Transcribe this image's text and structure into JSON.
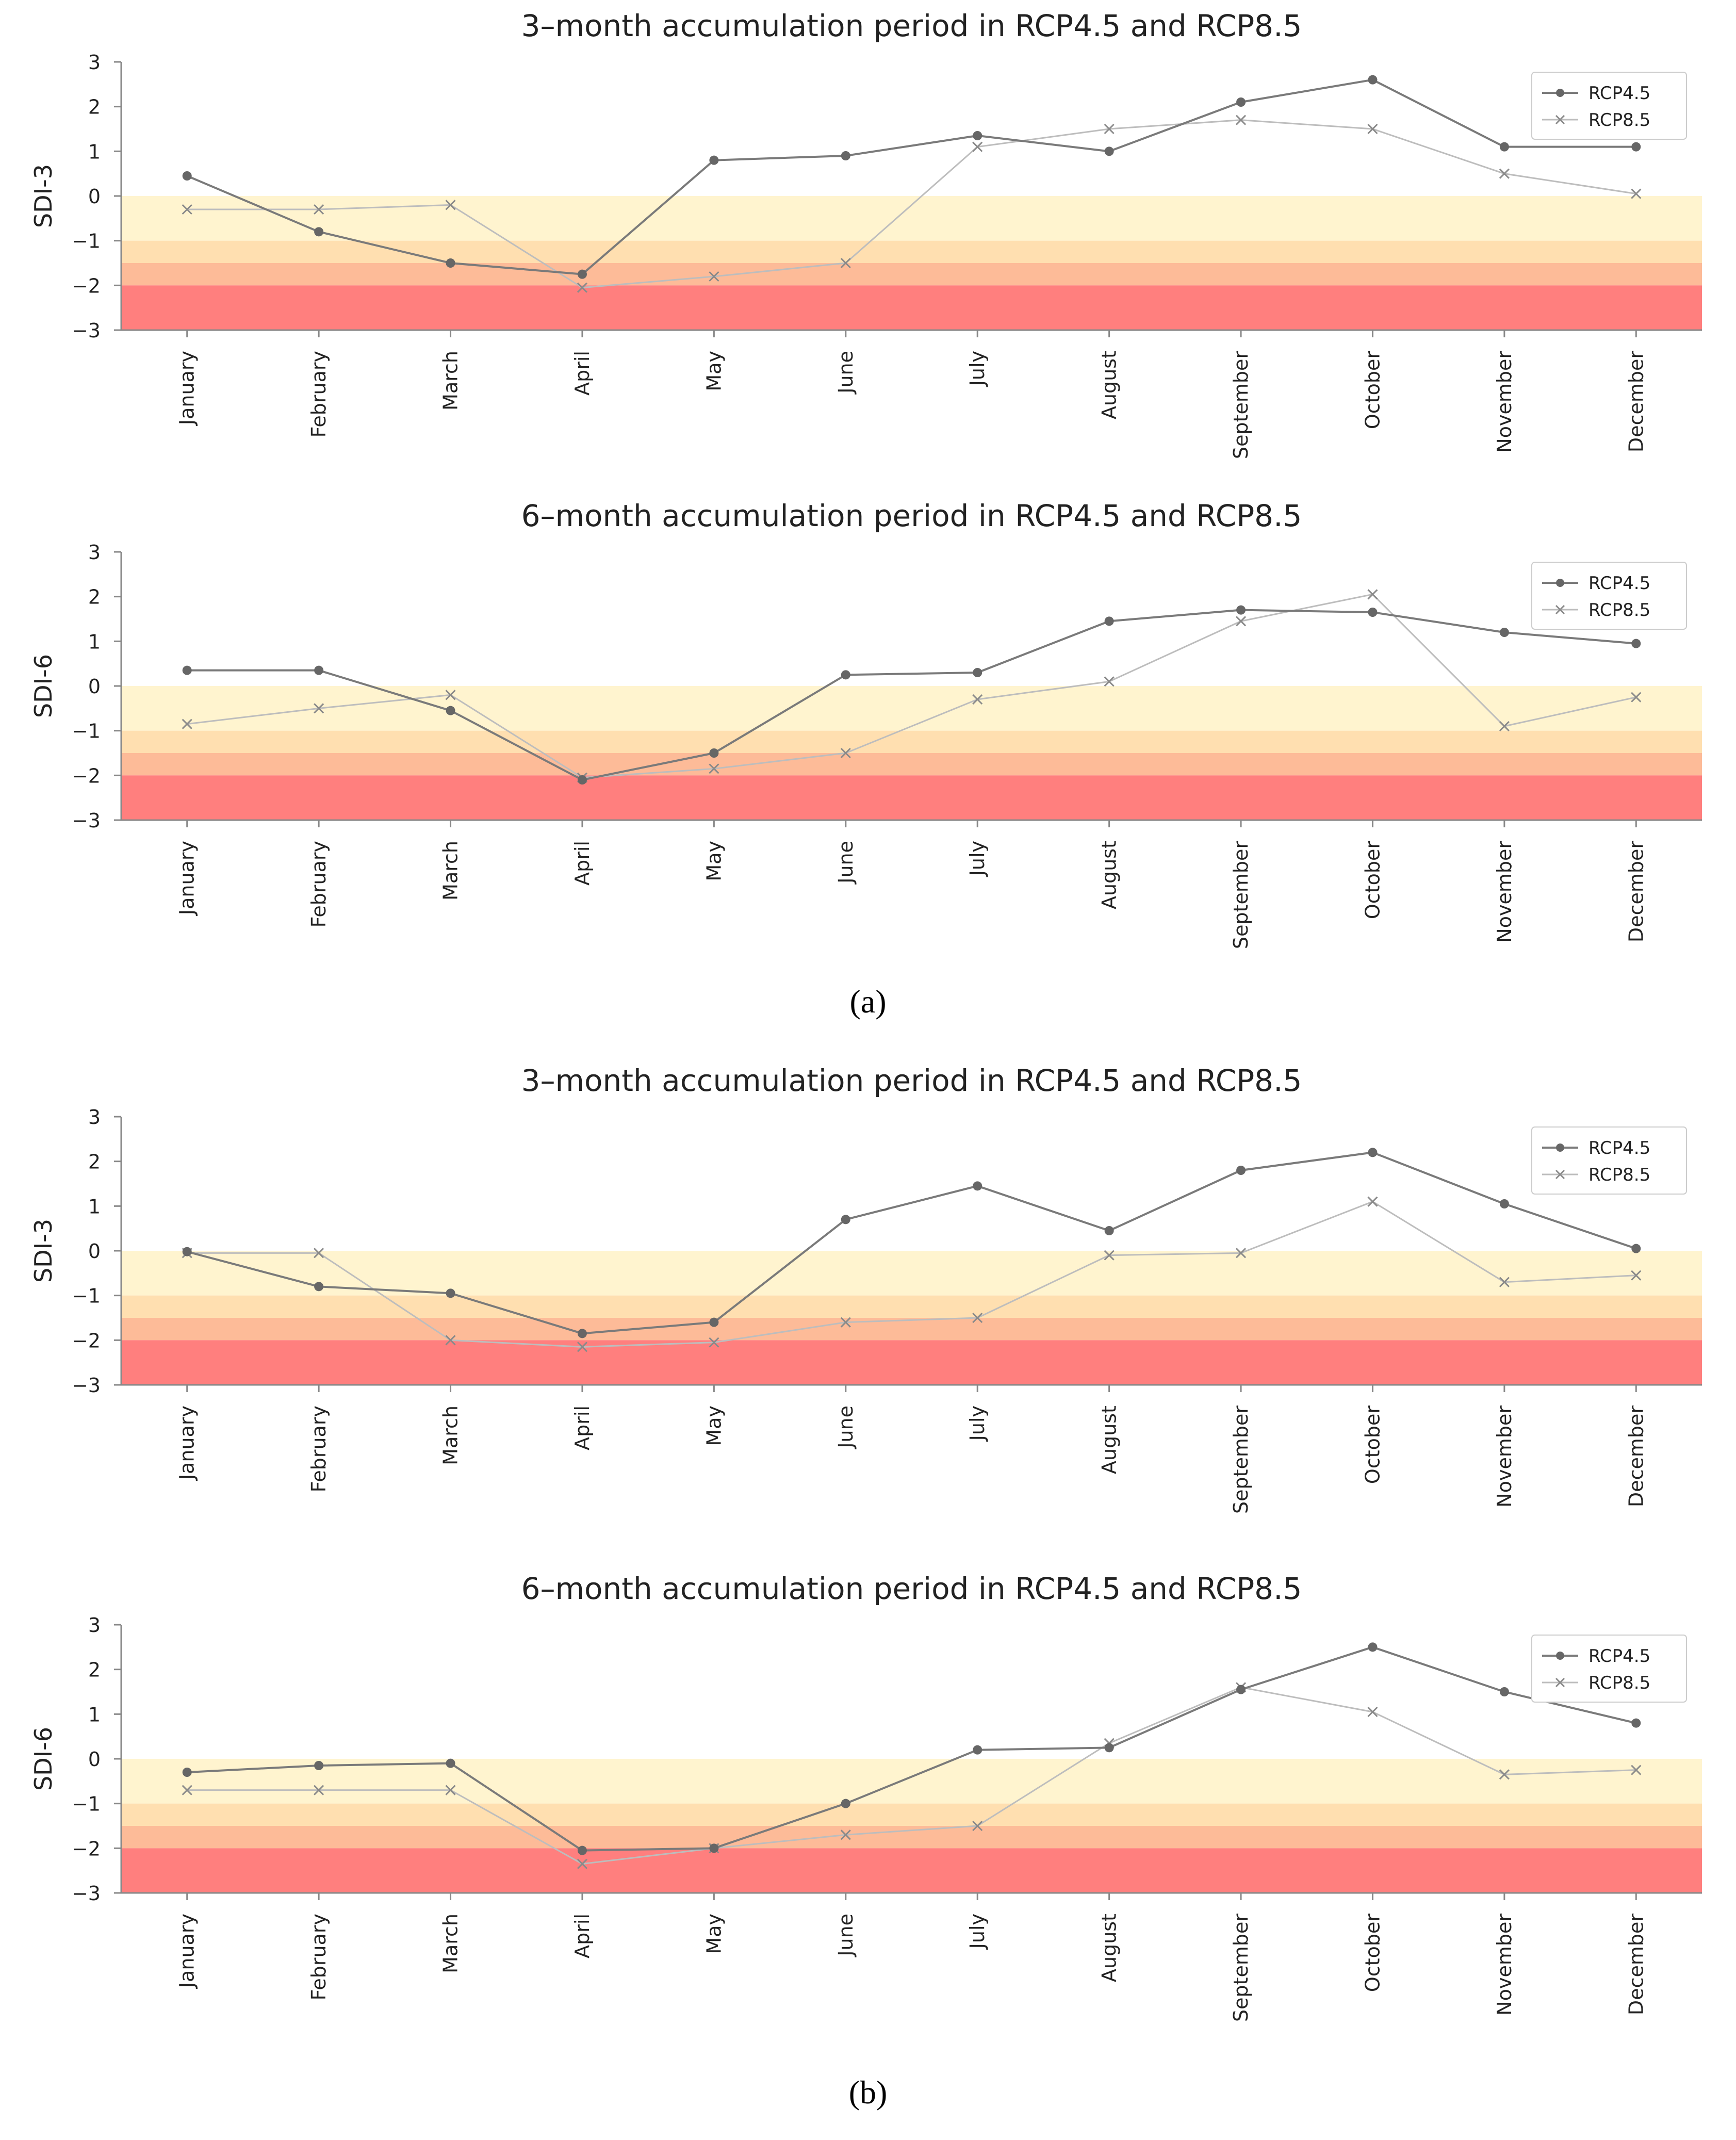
{
  "figure": {
    "caption_a": "(a)",
    "caption_b": "(b)"
  },
  "colors": {
    "band_mild": "#FFF4CF",
    "band_moderate": "#FFDFB0",
    "band_severe": "#FDBB98",
    "band_extreme": "#FF7F7E",
    "rcp45": "#7A7A7A",
    "rcp85": "#BDBDBD",
    "axis": "#888888",
    "text": "#222222"
  },
  "chart_data": [
    {
      "type": "line",
      "panel": "a",
      "title": "3–month accumulation period in RCP4.5 and RCP8.5",
      "ylabel": "SDI-3",
      "xlabel": "",
      "ylim": [
        -3,
        3
      ],
      "yticks": [
        "3",
        "2",
        "1",
        "0",
        "−1",
        "−2",
        "−3"
      ],
      "categories": [
        "January",
        "February",
        "March",
        "April",
        "May",
        "June",
        "July",
        "August",
        "September",
        "October",
        "November",
        "December"
      ],
      "series": [
        {
          "name": "RCP4.5",
          "marker": "circle",
          "values": [
            0.45,
            -0.8,
            -1.5,
            -1.75,
            0.8,
            0.9,
            1.35,
            1.0,
            2.1,
            2.6,
            1.1,
            1.1
          ]
        },
        {
          "name": "RCP8.5",
          "marker": "x",
          "values": [
            -0.3,
            -0.3,
            -0.2,
            -2.05,
            -1.8,
            -1.5,
            1.1,
            1.5,
            1.7,
            1.5,
            0.5,
            0.05
          ]
        }
      ],
      "drought_bands": [
        [
          -1,
          0
        ],
        [
          -1.5,
          -1
        ],
        [
          -2,
          -1.5
        ],
        [
          -3,
          -2
        ]
      ],
      "legend": "top-right"
    },
    {
      "type": "line",
      "panel": "a",
      "title": "6–month accumulation period in RCP4.5 and RCP8.5",
      "ylabel": "SDI-6",
      "xlabel": "",
      "ylim": [
        -3,
        3
      ],
      "yticks": [
        "3",
        "2",
        "1",
        "0",
        "−1",
        "−2",
        "−3"
      ],
      "categories": [
        "January",
        "February",
        "March",
        "April",
        "May",
        "June",
        "July",
        "August",
        "September",
        "October",
        "November",
        "December"
      ],
      "series": [
        {
          "name": "RCP4.5",
          "marker": "circle",
          "values": [
            0.35,
            0.35,
            -0.55,
            -2.1,
            -1.5,
            0.25,
            0.3,
            1.45,
            1.7,
            1.65,
            1.2,
            0.95
          ]
        },
        {
          "name": "RCP8.5",
          "marker": "x",
          "values": [
            -0.85,
            -0.5,
            -0.2,
            -2.05,
            -1.85,
            -1.5,
            -0.3,
            0.1,
            1.45,
            2.05,
            -0.9,
            -0.25
          ]
        }
      ],
      "drought_bands": [
        [
          -1,
          0
        ],
        [
          -1.5,
          -1
        ],
        [
          -2,
          -1.5
        ],
        [
          -3,
          -2
        ]
      ],
      "legend": "top-right"
    },
    {
      "type": "line",
      "panel": "b",
      "title": "3–month accumulation period in RCP4.5 and RCP8.5",
      "ylabel": "SDI-3",
      "xlabel": "",
      "ylim": [
        -3,
        3
      ],
      "yticks": [
        "3",
        "2",
        "1",
        "0",
        "−1",
        "−2",
        "−3"
      ],
      "categories": [
        "January",
        "February",
        "March",
        "April",
        "May",
        "June",
        "July",
        "August",
        "September",
        "October",
        "November",
        "December"
      ],
      "series": [
        {
          "name": "RCP4.5",
          "marker": "circle",
          "values": [
            -0.02,
            -0.8,
            -0.95,
            -1.85,
            -1.6,
            0.7,
            1.45,
            0.45,
            1.8,
            2.2,
            1.05,
            0.05
          ]
        },
        {
          "name": "RCP8.5",
          "marker": "x",
          "values": [
            -0.05,
            -0.05,
            -2.0,
            -2.15,
            -2.05,
            -1.6,
            -1.5,
            -0.1,
            -0.05,
            1.1,
            -0.7,
            -0.55
          ]
        }
      ],
      "drought_bands": [
        [
          -1,
          0
        ],
        [
          -1.5,
          -1
        ],
        [
          -2,
          -1.5
        ],
        [
          -3,
          -2
        ]
      ],
      "legend": "top-right"
    },
    {
      "type": "line",
      "panel": "b",
      "title": "6–month accumulation period in RCP4.5 and RCP8.5",
      "ylabel": "SDI-6",
      "xlabel": "",
      "ylim": [
        -3,
        3
      ],
      "yticks": [
        "3",
        "2",
        "1",
        "0",
        "−1",
        "−2",
        "−3"
      ],
      "categories": [
        "January",
        "February",
        "March",
        "April",
        "May",
        "June",
        "July",
        "August",
        "September",
        "October",
        "November",
        "December"
      ],
      "series": [
        {
          "name": "RCP4.5",
          "marker": "circle",
          "values": [
            -0.3,
            -0.15,
            -0.1,
            -2.05,
            -2.0,
            -1.0,
            0.2,
            0.25,
            1.55,
            2.5,
            1.5,
            0.8
          ]
        },
        {
          "name": "RCP8.5",
          "marker": "x",
          "values": [
            -0.7,
            -0.7,
            -0.7,
            -2.35,
            -2.0,
            -1.7,
            -1.5,
            0.35,
            1.6,
            1.05,
            -0.35,
            -0.25
          ]
        }
      ],
      "drought_bands": [
        [
          -1,
          0
        ],
        [
          -1.5,
          -1
        ],
        [
          -2,
          -1.5
        ],
        [
          -3,
          -2
        ]
      ],
      "legend": "top-right"
    }
  ]
}
